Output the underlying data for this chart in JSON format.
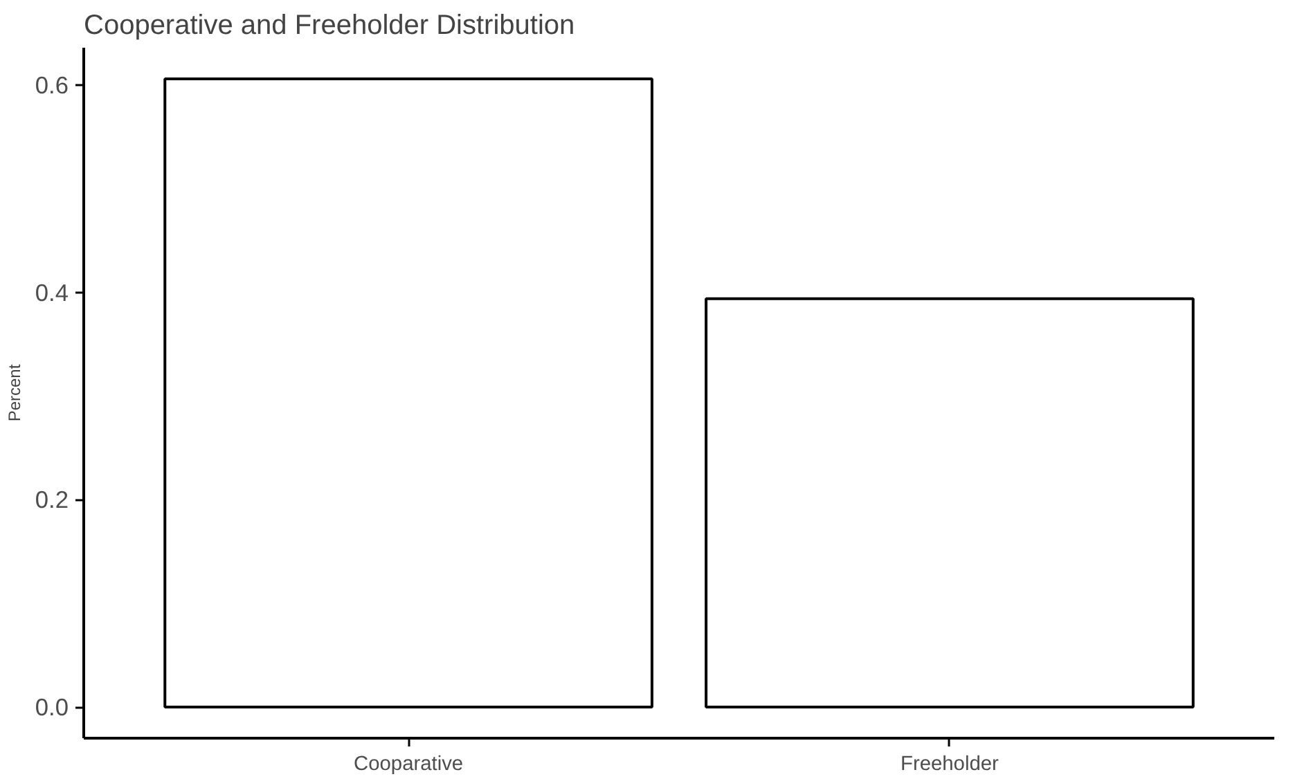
{
  "chart_data": {
    "type": "bar",
    "title": "Cooperative and Freeholder Distribution",
    "ylabel": "Percent",
    "categories": [
      "Cooparative",
      "Freeholder"
    ],
    "values": [
      0.606,
      0.394
    ],
    "color": "#ffffff",
    "ylim": [
      -0.03,
      0.636
    ],
    "yticks": [
      {
        "value": 0,
        "label": "0.0"
      },
      {
        "value": 0.2,
        "label": "0.2"
      },
      {
        "value": 0.4,
        "label": "0.4"
      },
      {
        "value": 0.6,
        "label": "0.6"
      }
    ],
    "grid": false
  }
}
